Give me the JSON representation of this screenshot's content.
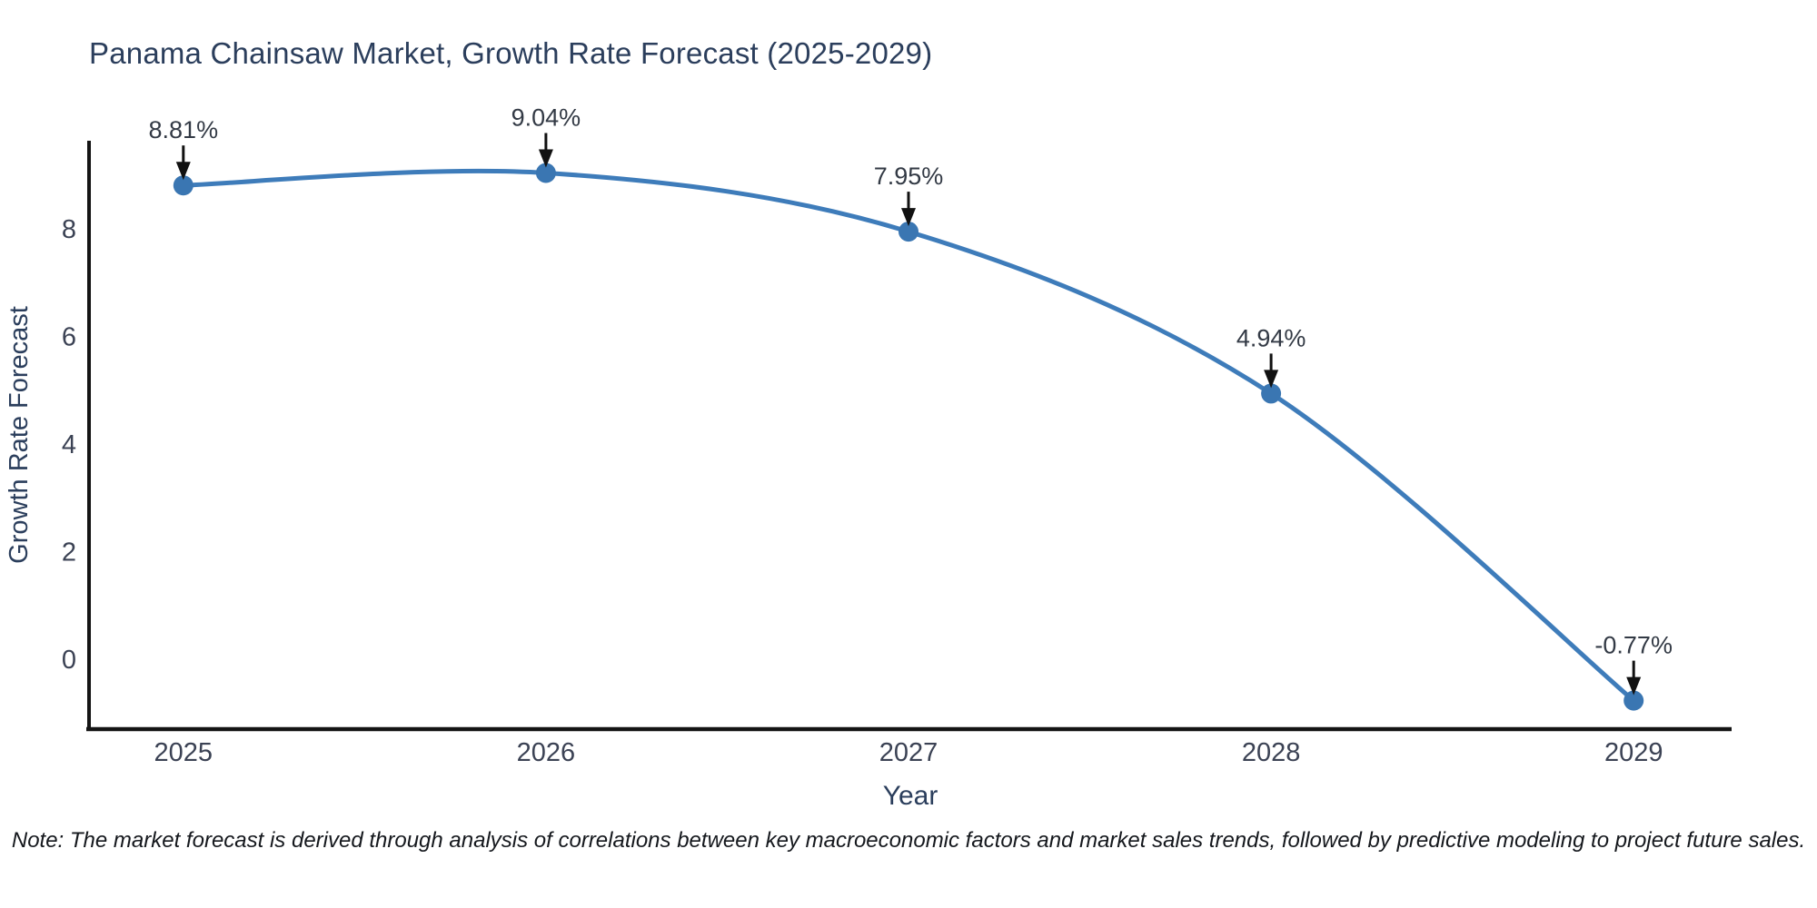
{
  "title": "Panama Chainsaw Market, Growth Rate Forecast (2025-2029)",
  "note": "Note: The market forecast is derived through analysis of correlations between key macroeconomic factors and market sales trends, followed by predictive modeling to project future sales.",
  "chart_data": {
    "type": "line",
    "title": "Panama Chainsaw Market, Growth Rate Forecast (2025-2029)",
    "xlabel": "Year",
    "ylabel": "Growth Rate Forecast",
    "x": [
      2025,
      2026,
      2027,
      2028,
      2029
    ],
    "xticks": [
      "2025",
      "2026",
      "2027",
      "2028",
      "2029"
    ],
    "values": [
      8.81,
      9.04,
      7.95,
      4.94,
      -0.77
    ],
    "point_labels": [
      "8.81%",
      "9.04%",
      "7.95%",
      "4.94%",
      "-0.77%"
    ],
    "yticks": [
      0,
      2,
      4,
      6,
      8
    ],
    "ylim": [
      -1.3,
      9.64
    ],
    "xlim": [
      2024.74,
      2029.27
    ],
    "grid": false,
    "legend": "none",
    "line_shape": "spline",
    "annotations_arrow": "down-arrow-to-point"
  },
  "colors": {
    "background": "#ffffff",
    "line": "#3e7cba",
    "marker": "#3a76b2",
    "axis": "#141414",
    "title_text": "#2b3e5c",
    "axis_label_text": "#2b3e5c",
    "tick_text": "#3b4254",
    "annotation_text": "#333a45",
    "arrow": "#111111",
    "note_text": "#15181d"
  }
}
